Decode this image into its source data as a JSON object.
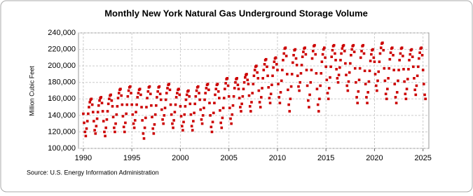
{
  "chart_data": {
    "type": "scatter",
    "title": "Monthly New York Natural Gas Underground Storage Volume",
    "y_label": "Million Cubic Feet",
    "source": "Source: U.S. Energy Information Administration",
    "grid": true,
    "xlim": [
      1989.5,
      2025.6
    ],
    "xticks": [
      1990,
      1995,
      2000,
      2005,
      2010,
      2015,
      2020,
      2025
    ],
    "ylim": [
      100000,
      240000
    ],
    "yticks": [
      {
        "value": 100000,
        "label": "100,000"
      },
      {
        "value": 120000,
        "label": "120,000"
      },
      {
        "value": 140000,
        "label": "140,000"
      },
      {
        "value": 160000,
        "label": "160,000"
      },
      {
        "value": 180000,
        "label": "180,000"
      },
      {
        "value": 200000,
        "label": "200,000"
      },
      {
        "value": 220000,
        "label": "220,000"
      },
      {
        "value": 240000,
        "label": "240,000"
      }
    ],
    "x": [
      1990.0,
      1990.08,
      1990.17,
      1990.25,
      1990.33,
      1990.42,
      1990.5,
      1990.58,
      1990.67,
      1990.75,
      1990.83,
      1990.92,
      1991.0,
      1991.08,
      1991.17,
      1991.25,
      1991.33,
      1991.42,
      1991.5,
      1991.58,
      1991.67,
      1991.75,
      1991.83,
      1991.92,
      1992.0,
      1992.08,
      1992.17,
      1992.25,
      1992.33,
      1992.42,
      1992.5,
      1992.58,
      1992.67,
      1992.75,
      1992.83,
      1992.92,
      1993.0,
      1993.08,
      1993.17,
      1993.25,
      1993.33,
      1993.42,
      1993.5,
      1993.58,
      1993.67,
      1993.75,
      1993.83,
      1993.92,
      1994.0,
      1994.08,
      1994.17,
      1994.25,
      1994.33,
      1994.42,
      1994.5,
      1994.58,
      1994.67,
      1994.75,
      1994.83,
      1994.92,
      1995.0,
      1995.08,
      1995.17,
      1995.25,
      1995.33,
      1995.42,
      1995.5,
      1995.58,
      1995.67,
      1995.75,
      1995.83,
      1995.92,
      1996.0,
      1996.08,
      1996.17,
      1996.25,
      1996.33,
      1996.42,
      1996.5,
      1996.58,
      1996.67,
      1996.75,
      1996.83,
      1996.92,
      1997.0,
      1997.08,
      1997.17,
      1997.25,
      1997.33,
      1997.42,
      1997.5,
      1997.58,
      1997.67,
      1997.75,
      1997.83,
      1997.92,
      1998.0,
      1998.08,
      1998.17,
      1998.25,
      1998.33,
      1998.42,
      1998.5,
      1998.58,
      1998.67,
      1998.75,
      1998.83,
      1998.92,
      1999.0,
      1999.08,
      1999.17,
      1999.25,
      1999.33,
      1999.42,
      1999.5,
      1999.58,
      1999.67,
      1999.75,
      1999.83,
      1999.92,
      2000.0,
      2000.08,
      2000.17,
      2000.25,
      2000.33,
      2000.42,
      2000.5,
      2000.58,
      2000.67,
      2000.75,
      2000.83,
      2000.92,
      2001.0,
      2001.08,
      2001.17,
      2001.25,
      2001.33,
      2001.42,
      2001.5,
      2001.58,
      2001.67,
      2001.75,
      2001.83,
      2001.92,
      2002.0,
      2002.08,
      2002.17,
      2002.25,
      2002.33,
      2002.42,
      2002.5,
      2002.58,
      2002.67,
      2002.75,
      2002.83,
      2002.92,
      2003.0,
      2003.08,
      2003.17,
      2003.25,
      2003.33,
      2003.42,
      2003.5,
      2003.58,
      2003.67,
      2003.75,
      2003.83,
      2003.92,
      2004.0,
      2004.08,
      2004.17,
      2004.25,
      2004.33,
      2004.42,
      2004.5,
      2004.58,
      2004.67,
      2004.75,
      2004.83,
      2004.92,
      2005.0,
      2005.08,
      2005.17,
      2005.25,
      2005.33,
      2005.42,
      2005.5,
      2005.58,
      2005.67,
      2005.75,
      2005.83,
      2005.92,
      2006.0,
      2006.08,
      2006.17,
      2006.25,
      2006.33,
      2006.42,
      2006.5,
      2006.58,
      2006.67,
      2006.75,
      2006.83,
      2006.92,
      2007.0,
      2007.08,
      2007.17,
      2007.25,
      2007.33,
      2007.42,
      2007.5,
      2007.58,
      2007.67,
      2007.75,
      2007.83,
      2007.92,
      2008.0,
      2008.08,
      2008.17,
      2008.25,
      2008.33,
      2008.42,
      2008.5,
      2008.58,
      2008.67,
      2008.75,
      2008.83,
      2008.92,
      2009.0,
      2009.08,
      2009.17,
      2009.25,
      2009.33,
      2009.42,
      2009.5,
      2009.58,
      2009.67,
      2009.75,
      2009.83,
      2009.92,
      2010.0,
      2010.08,
      2010.17,
      2010.25,
      2010.33,
      2010.42,
      2010.5,
      2010.58,
      2010.67,
      2010.75,
      2010.83,
      2010.92,
      2011.0,
      2011.08,
      2011.17,
      2011.25,
      2011.33,
      2011.42,
      2011.5,
      2011.58,
      2011.67,
      2011.75,
      2011.83,
      2011.92,
      2012.0,
      2012.08,
      2012.17,
      2012.25,
      2012.33,
      2012.42,
      2012.5,
      2012.58,
      2012.67,
      2012.75,
      2012.83,
      2012.92,
      2013.0,
      2013.08,
      2013.17,
      2013.25,
      2013.33,
      2013.42,
      2013.5,
      2013.58,
      2013.67,
      2013.75,
      2013.83,
      2013.92,
      2014.0,
      2014.08,
      2014.17,
      2014.25,
      2014.33,
      2014.42,
      2014.5,
      2014.58,
      2014.67,
      2014.75,
      2014.83,
      2014.92,
      2015.0,
      2015.08,
      2015.17,
      2015.25,
      2015.33,
      2015.42,
      2015.5,
      2015.58,
      2015.67,
      2015.75,
      2015.83,
      2015.92,
      2016.0,
      2016.08,
      2016.17,
      2016.25,
      2016.33,
      2016.42,
      2016.5,
      2016.58,
      2016.67,
      2016.75,
      2016.83,
      2016.92,
      2017.0,
      2017.08,
      2017.17,
      2017.25,
      2017.33,
      2017.42,
      2017.5,
      2017.58,
      2017.67,
      2017.75,
      2017.83,
      2017.92,
      2018.0,
      2018.08,
      2018.17,
      2018.25,
      2018.33,
      2018.42,
      2018.5,
      2018.58,
      2018.67,
      2018.75,
      2018.83,
      2018.92,
      2019.0,
      2019.08,
      2019.17,
      2019.25,
      2019.33,
      2019.42,
      2019.5,
      2019.58,
      2019.67,
      2019.75,
      2019.83,
      2019.92,
      2020.0,
      2020.08,
      2020.17,
      2020.25,
      2020.33,
      2020.42,
      2020.5,
      2020.58,
      2020.67,
      2020.75,
      2020.83,
      2020.92,
      2021.0,
      2021.08,
      2021.17,
      2021.25,
      2021.33,
      2021.42,
      2021.5,
      2021.58,
      2021.67,
      2021.75,
      2021.83,
      2021.92,
      2022.0,
      2022.08,
      2022.17,
      2022.25,
      2022.33,
      2022.42,
      2022.5,
      2022.58,
      2022.67,
      2022.75,
      2022.83,
      2022.92,
      2023.0,
      2023.08,
      2023.17,
      2023.25,
      2023.33,
      2023.42,
      2023.5,
      2023.58,
      2023.67,
      2023.75,
      2023.83,
      2023.92,
      2024.0,
      2024.08,
      2024.17,
      2024.25,
      2024.33,
      2024.42,
      2024.5,
      2024.58,
      2024.67,
      2024.75,
      2024.83,
      2024.92,
      2025.0,
      2025.08,
      2025.17,
      2025.25
    ],
    "series": [
      {
        "color": "#cc0000",
        "values": [
          142000,
          131000,
          120000,
          115000,
          124000,
          133000,
          142000,
          150000,
          156000,
          159000,
          160000,
          153000,
          144000,
          133000,
          122000,
          118000,
          127000,
          136000,
          144000,
          152000,
          158000,
          161000,
          162000,
          155000,
          145000,
          133000,
          120000,
          115000,
          125000,
          135000,
          145000,
          154000,
          160000,
          164000,
          165000,
          158000,
          151000,
          138000,
          125000,
          120000,
          130000,
          141000,
          151000,
          161000,
          167000,
          171000,
          172000,
          164000,
          153000,
          139000,
          126000,
          120000,
          131000,
          142000,
          153000,
          163000,
          170000,
          174000,
          175000,
          167000,
          153000,
          141000,
          130000,
          125000,
          134000,
          144000,
          153000,
          162000,
          167000,
          171000,
          172000,
          165000,
          150000,
          134000,
          118000,
          112000,
          125000,
          137000,
          150000,
          161000,
          169000,
          174000,
          175000,
          166000,
          152000,
          138000,
          124000,
          118000,
          129000,
          141000,
          152000,
          162000,
          169000,
          174000,
          175000,
          166000,
          159000,
          147000,
          135000,
          130000,
          140000,
          149000,
          159000,
          167000,
          173000,
          177000,
          178000,
          171000,
          153000,
          141000,
          130000,
          125000,
          134000,
          144000,
          153000,
          162000,
          167000,
          171000,
          172000,
          165000,
          151000,
          139000,
          127000,
          122000,
          132000,
          141000,
          151000,
          159000,
          165000,
          169000,
          170000,
          163000,
          154000,
          141000,
          127000,
          122000,
          133000,
          143000,
          154000,
          163000,
          170000,
          174000,
          175000,
          167000,
          159000,
          147000,
          135000,
          130000,
          140000,
          149000,
          159000,
          167000,
          173000,
          177000,
          178000,
          171000,
          155000,
          140000,
          126000,
          120000,
          132000,
          143000,
          155000,
          165000,
          172000,
          177000,
          178000,
          169000,
          161000,
          146000,
          131000,
          125000,
          137000,
          149000,
          161000,
          172000,
          179000,
          184000,
          185000,
          176000,
          163000,
          149000,
          136000,
          130000,
          141000,
          152000,
          163000,
          173000,
          180000,
          184000,
          185000,
          177000,
          172000,
          161000,
          150000,
          145000,
          154000,
          163000,
          172000,
          180000,
          186000,
          189000,
          190000,
          183000,
          178000,
          164000,
          151000,
          145000,
          156000,
          167000,
          178000,
          188000,
          195000,
          199000,
          200000,
          192000,
          185000,
          170000,
          156000,
          150000,
          162000,
          173000,
          185000,
          195000,
          202000,
          207000,
          208000,
          199000,
          188000,
          174000,
          161000,
          155000,
          166000,
          177000,
          188000,
          198000,
          205000,
          209000,
          210000,
          202000,
          195000,
          178000,
          162000,
          155000,
          168000,
          182000,
          195000,
          207000,
          215000,
          221000,
          222000,
          212000,
          190000,
          171000,
          153000,
          145000,
          160000,
          175000,
          190000,
          204000,
          213000,
          219000,
          220000,
          209000,
          201000,
          188000,
          175000,
          170000,
          180000,
          191000,
          201000,
          211000,
          217000,
          221000,
          222000,
          214000,
          195000,
          176000,
          158000,
          150000,
          165000,
          180000,
          195000,
          209000,
          218000,
          224000,
          225000,
          214000,
          191000,
          172000,
          153000,
          145000,
          160000,
          176000,
          191000,
          205000,
          214000,
          220000,
          222000,
          210000,
          199000,
          183000,
          167000,
          160000,
          173000,
          186000,
          199000,
          211000,
          219000,
          224000,
          225000,
          215000,
          207000,
          196000,
          185000,
          180000,
          189000,
          198000,
          207000,
          215000,
          221000,
          224000,
          225000,
          218000,
          203000,
          189000,
          176000,
          170000,
          181000,
          192000,
          203000,
          213000,
          220000,
          224000,
          225000,
          217000,
          197000,
          180000,
          162000,
          155000,
          169000,
          183000,
          197000,
          210000,
          218000,
          224000,
          225000,
          215000,
          194000,
          178000,
          162000,
          155000,
          168000,
          181000,
          194000,
          206000,
          214000,
          219000,
          220000,
          210000,
          205000,
          190000,
          176000,
          170000,
          182000,
          193000,
          205000,
          215000,
          222000,
          227000,
          228000,
          219000,
          197000,
          182000,
          166000,
          160000,
          172000,
          185000,
          197000,
          208000,
          216000,
          221000,
          222000,
          213000,
          195000,
          178000,
          162000,
          155000,
          168000,
          182000,
          195000,
          207000,
          215000,
          221000,
          222000,
          212000,
          196000,
          181000,
          166000,
          160000,
          172000,
          184000,
          196000,
          207000,
          214000,
          219000,
          220000,
          211000,
          199000,
          185000,
          171000,
          165000,
          176000,
          188000,
          199000,
          209000,
          216000,
          221000,
          222000,
          213000,
          195000,
          178000,
          165000,
          160000
        ]
      }
    ]
  }
}
